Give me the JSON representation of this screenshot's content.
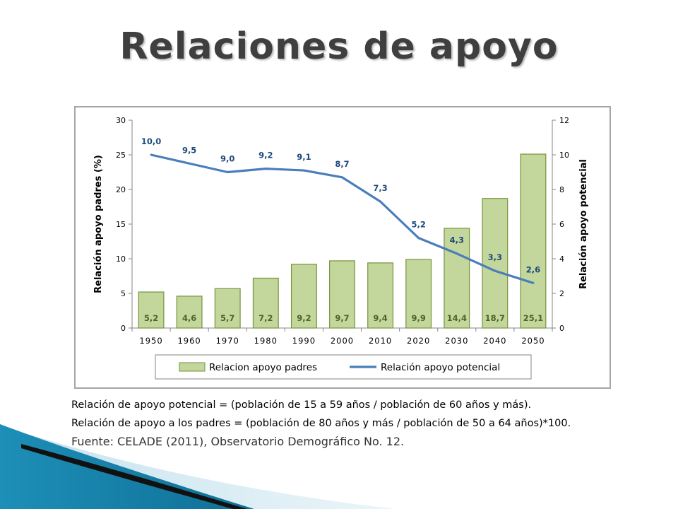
{
  "slide": {
    "title": "Relaciones de apoyo",
    "note_potential": "Relación de apoyo potencial = (población de 15 a 59 años / población de 60 años y más).",
    "note_parents": "Relación de apoyo a los padres = (población de 80 años y más / población de 50 a 64 años)*100.",
    "source": "Fuente: CELADE (2011), Observatorio Demográfico No. 12."
  },
  "colors": {
    "bar_fill": "#c3d69b",
    "bar_stroke": "#77933c",
    "line": "#4a7ebb",
    "label_bar": "#4f6228",
    "label_line": "#1f497d",
    "title": "#3f3f3f"
  },
  "chart_data": {
    "type": "bar+line",
    "categories": [
      "1950",
      "1960",
      "1970",
      "1980",
      "1990",
      "2000",
      "2010",
      "2020",
      "2030",
      "2040",
      "2050"
    ],
    "series": [
      {
        "name": "Relacion apoyo padres",
        "type": "bar",
        "axis": "left",
        "values": [
          5.2,
          4.6,
          5.7,
          7.2,
          9.2,
          9.7,
          9.4,
          9.9,
          14.4,
          18.7,
          25.1
        ],
        "labels": [
          "5,2",
          "4,6",
          "5,7",
          "7,2",
          "9,2",
          "9,7",
          "9,4",
          "9,9",
          "14,4",
          "18,7",
          "25,1"
        ]
      },
      {
        "name": "Relación apoyo potencial",
        "type": "line",
        "axis": "right",
        "values": [
          10.0,
          9.5,
          9.0,
          9.2,
          9.1,
          8.7,
          7.3,
          5.2,
          4.3,
          3.3,
          2.6
        ],
        "labels": [
          "10,0",
          "9,5",
          "9,0",
          "9,2",
          "9,1",
          "8,7",
          "7,3",
          "5,2",
          "4,3",
          "3,3",
          "2,6"
        ]
      }
    ],
    "ylabel_left": "Relación apoyo padres (%)",
    "ylabel_right": "Relación apoyo potencial",
    "ylim_left": [
      0,
      30
    ],
    "yticks_left": [
      "0",
      "5",
      "10",
      "15",
      "20",
      "25",
      "30"
    ],
    "ylim_right": [
      0,
      12
    ],
    "yticks_right": [
      "0",
      "2",
      "4",
      "6",
      "8",
      "10",
      "12"
    ],
    "legend_position": "bottom",
    "grid": false
  }
}
